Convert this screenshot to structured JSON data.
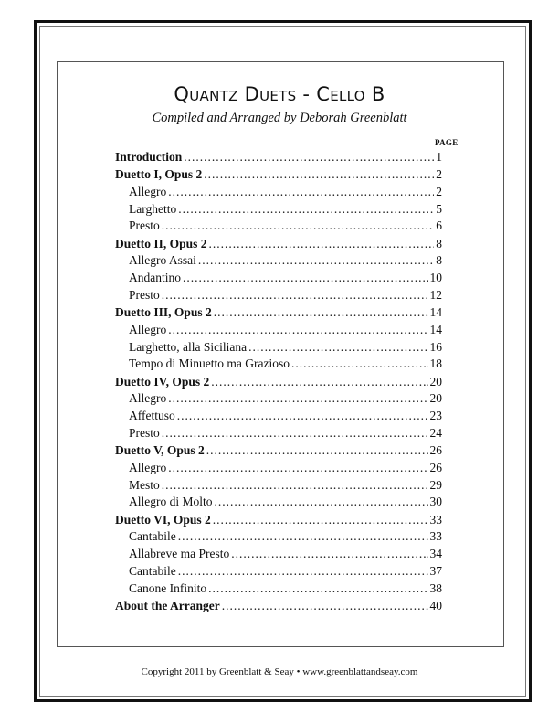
{
  "title": "Quantz Duets - Cello B",
  "subtitle": "Compiled and Arranged by Deborah Greenblatt",
  "page_header": "PAGE",
  "toc": [
    {
      "label": "Introduction",
      "page": "1",
      "type": "sec"
    },
    {
      "label": "Duetto I, Opus 2",
      "page": "2",
      "type": "sec"
    },
    {
      "label": "Allegro",
      "page": "2",
      "type": "sub"
    },
    {
      "label": "Larghetto",
      "page": "5",
      "type": "sub"
    },
    {
      "label": "Presto",
      "page": "6",
      "type": "sub"
    },
    {
      "label": "Duetto II, Opus 2",
      "page": "8",
      "type": "sec"
    },
    {
      "label": "Allegro Assai",
      "page": "8",
      "type": "sub"
    },
    {
      "label": "Andantino",
      "page": "10",
      "type": "sub"
    },
    {
      "label": "Presto",
      "page": "12",
      "type": "sub"
    },
    {
      "label": "Duetto III, Opus 2",
      "page": "14",
      "type": "sec"
    },
    {
      "label": "Allegro",
      "page": "14",
      "type": "sub"
    },
    {
      "label": "Larghetto, alla Siciliana",
      "page": "16",
      "type": "sub"
    },
    {
      "label": "Tempo di Minuetto ma Grazioso",
      "page": "18",
      "type": "sub"
    },
    {
      "label": "Duetto IV, Opus 2",
      "page": "20",
      "type": "sec"
    },
    {
      "label": "Allegro",
      "page": "20",
      "type": "sub"
    },
    {
      "label": "Affettuso",
      "page": "23",
      "type": "sub"
    },
    {
      "label": "Presto",
      "page": "24",
      "type": "sub"
    },
    {
      "label": "Duetto V, Opus 2",
      "page": "26",
      "type": "sec"
    },
    {
      "label": "Allegro",
      "page": "26",
      "type": "sub"
    },
    {
      "label": "Mesto",
      "page": "29",
      "type": "sub"
    },
    {
      "label": "Allegro di Molto",
      "page": "30",
      "type": "sub"
    },
    {
      "label": "Duetto VI, Opus 2",
      "page": "33",
      "type": "sec"
    },
    {
      "label": "Cantabile",
      "page": "33",
      "type": "sub"
    },
    {
      "label": "Allabreve ma Presto",
      "page": "34",
      "type": "sub"
    },
    {
      "label": "Cantabile",
      "page": "37",
      "type": "sub"
    },
    {
      "label": "Canone Infinito",
      "page": "38",
      "type": "sub"
    },
    {
      "label": "About the Arranger",
      "page": "40",
      "type": "sec"
    }
  ],
  "footer": "Copyright 2011 by Greenblatt & Seay  •  www.greenblattandseay.com"
}
